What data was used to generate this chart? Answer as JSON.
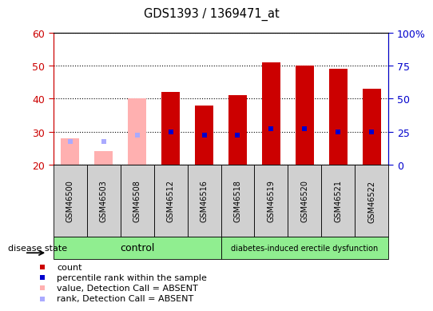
{
  "title": "GDS1393 / 1369471_at",
  "samples": [
    "GSM46500",
    "GSM46503",
    "GSM46508",
    "GSM46512",
    "GSM46516",
    "GSM46518",
    "GSM46519",
    "GSM46520",
    "GSM46521",
    "GSM46522"
  ],
  "count_values": [
    28,
    24,
    40,
    42,
    38,
    41,
    51,
    50,
    49,
    43
  ],
  "count_absent": [
    true,
    true,
    true,
    false,
    false,
    false,
    false,
    false,
    false,
    false
  ],
  "percentile_values": [
    27,
    27,
    29,
    30,
    29,
    29,
    31,
    31,
    30,
    30
  ],
  "percentile_absent": [
    true,
    true,
    true,
    false,
    false,
    false,
    false,
    false,
    false,
    false
  ],
  "ylim_left": [
    20,
    60
  ],
  "ylim_right": [
    0,
    100
  ],
  "yticks_left": [
    20,
    30,
    40,
    50,
    60
  ],
  "yticks_right": [
    0,
    25,
    50,
    75,
    100
  ],
  "ytick_labels_right": [
    "0",
    "25",
    "50",
    "75",
    "100%"
  ],
  "n_control": 5,
  "n_disease": 5,
  "control_label": "control",
  "disease_label": "diabetes-induced erectile dysfunction",
  "disease_state_label": "disease state",
  "count_color": "#cc0000",
  "count_absent_color": "#ffb0b0",
  "percentile_color": "#0000cc",
  "percentile_absent_color": "#aaaaff",
  "control_bg": "#90ee90",
  "disease_bg": "#90ee90",
  "sample_box_bg": "#d0d0d0",
  "legend_items": [
    {
      "label": "count",
      "color": "#cc0000"
    },
    {
      "label": "percentile rank within the sample",
      "color": "#0000cc"
    },
    {
      "label": "value, Detection Call = ABSENT",
      "color": "#ffb0b0"
    },
    {
      "label": "rank, Detection Call = ABSENT",
      "color": "#aaaaff"
    }
  ]
}
